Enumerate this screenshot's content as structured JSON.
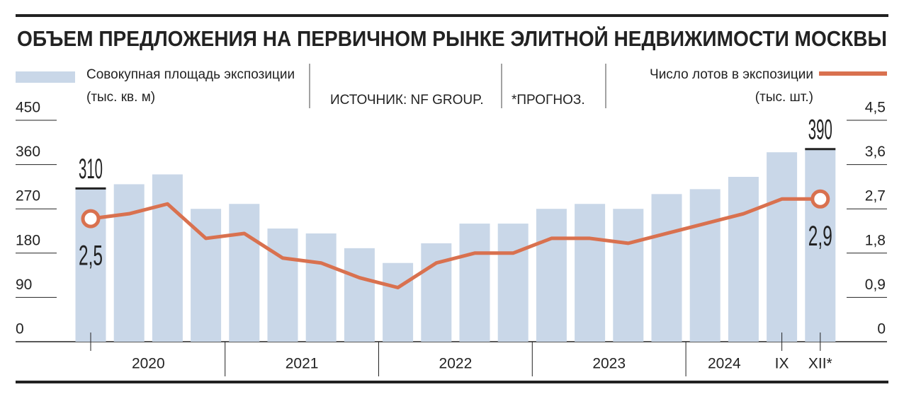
{
  "chart_data": {
    "type": "bar-line",
    "title": "ОБЪЕМ ПРЕДЛОЖЕНИЯ НА ПЕРВИЧНОМ РЫНКЕ ЭЛИТНОЙ НЕДВИЖИМОСТИ МОСКВЫ",
    "source": "ИСТОЧНИК: NF GROUP.",
    "note": "*ПРОГНОЗ.",
    "categories": [
      "2020",
      null,
      null,
      null,
      "2021",
      null,
      null,
      null,
      "2022",
      null,
      null,
      null,
      "2023",
      null,
      null,
      null,
      "2024",
      null,
      "IX",
      "XII*"
    ],
    "series": [
      {
        "name": "Совокупная площадь экспозиции (тыс. кв. м)",
        "type": "bar",
        "color": "#c9d7e8",
        "values": [
          310,
          320,
          340,
          270,
          280,
          230,
          220,
          190,
          160,
          200,
          240,
          240,
          270,
          280,
          270,
          300,
          310,
          335,
          385,
          390
        ]
      },
      {
        "name": "Число лотов в экспозиции (тыс. шт.)",
        "type": "line",
        "axis": "y2",
        "color": "#d9714f",
        "values": [
          2.5,
          2.6,
          2.8,
          2.1,
          2.2,
          1.7,
          1.6,
          1.3,
          1.1,
          1.6,
          1.8,
          1.8,
          2.1,
          2.1,
          2.0,
          2.2,
          2.4,
          2.6,
          2.9,
          2.9
        ],
        "value_labels": [
          "2,5",
          null,
          null,
          null,
          null,
          null,
          null,
          null,
          null,
          null,
          null,
          null,
          null,
          null,
          null,
          null,
          null,
          null,
          null,
          "2,9"
        ]
      }
    ],
    "ylim": [
      0,
      450
    ],
    "yticks": [
      0,
      90,
      180,
      270,
      360,
      450
    ],
    "y2lim": [
      0,
      4.5
    ],
    "y2ticks": [
      0,
      {
        "value": 0.9,
        "label": "0,9"
      },
      {
        "value": 1.8,
        "label": "1,8"
      },
      {
        "value": 2.7,
        "label": "2,7"
      },
      {
        "value": 3.6,
        "label": "3,6"
      },
      {
        "value": 4.5,
        "label": "4,5"
      }
    ]
  }
}
